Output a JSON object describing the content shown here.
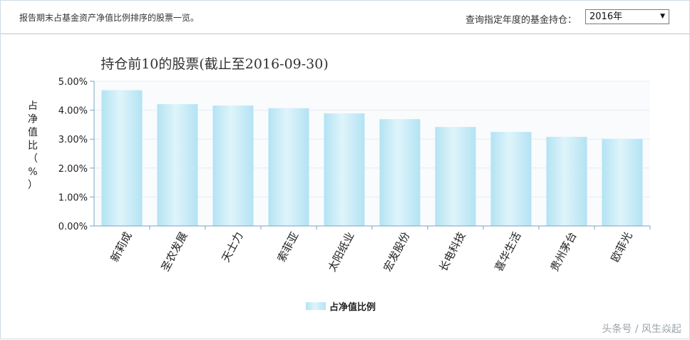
{
  "header": {
    "description": "报告期末占基金资产净值比例排序的股票一览。",
    "year_label": "查询指定年度的基金持仓：",
    "year_selected": "2016年"
  },
  "watermark": "头条号 / 风生焱起",
  "chart_data": {
    "type": "bar",
    "title": "持仓前10的股票(截止至2016-09-30)",
    "ylabel": "占净值比（%）",
    "categories": [
      "新莉成",
      "圣农发展",
      "天士力",
      "索菲亚",
      "太阳纸业",
      "宏发股份",
      "长电科技",
      "喜华生活",
      "贵州茅台",
      "欧菲光"
    ],
    "series": [
      {
        "name": "占净值比例",
        "values": [
          4.69,
          4.21,
          4.16,
          4.07,
          3.89,
          3.69,
          3.42,
          3.25,
          3.08,
          3.01
        ]
      }
    ],
    "ylim": [
      0,
      5
    ],
    "yticks": [
      "0.00%",
      "1.00%",
      "2.00%",
      "3.00%",
      "4.00%",
      "5.00%"
    ],
    "grid": true,
    "legend": "bottom-center",
    "colors": {
      "bar_light": "#dff4fb",
      "bar_dark": "#b3e3f3",
      "axis": "#7aa6c2",
      "grid": "#e8edf2",
      "plot_bg": "#f9fbfd"
    }
  }
}
